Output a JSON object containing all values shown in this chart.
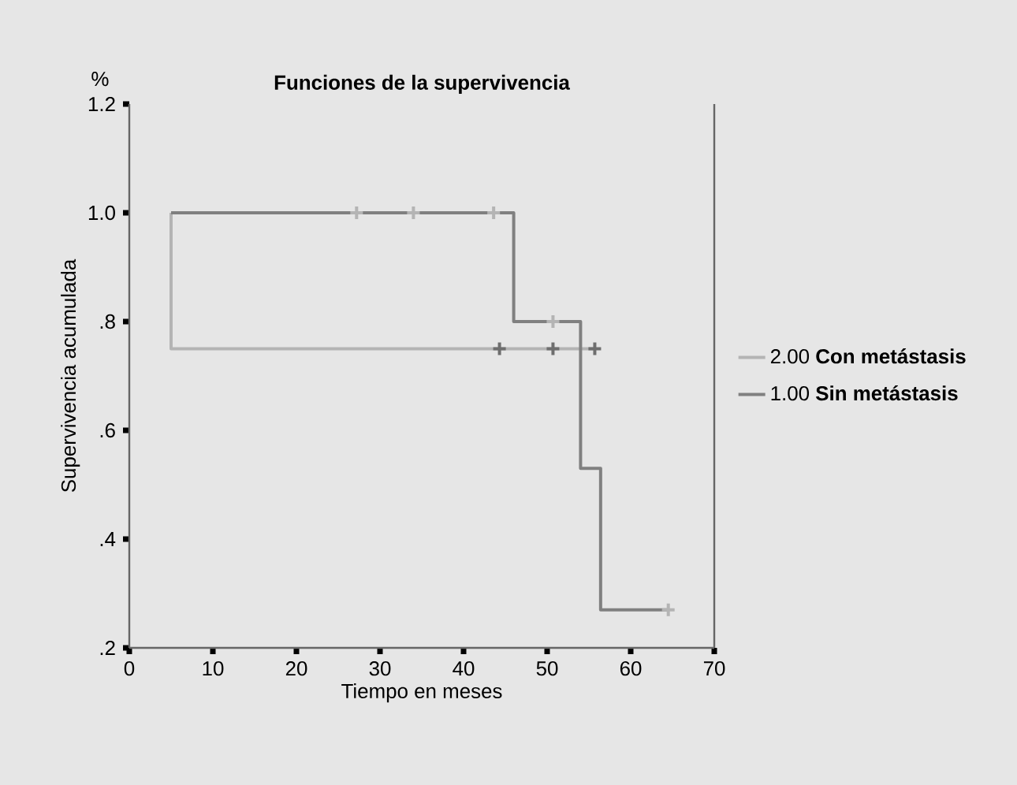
{
  "chart_data": {
    "type": "step",
    "title": "Funciones de la supervivencia",
    "xlabel": "Tiempo en meses",
    "ylabel": "Supervivencia acumulada",
    "annotations": [
      "%"
    ],
    "xlim": [
      0,
      70
    ],
    "xticks": [
      0,
      10,
      20,
      30,
      40,
      50,
      60,
      70
    ],
    "ylim": [
      0.2,
      1.2
    ],
    "yticks": [
      {
        "value": 0.2,
        "label": ".2"
      },
      {
        "value": 0.4,
        "label": ".4"
      },
      {
        "value": 0.6,
        "label": ".6"
      },
      {
        "value": 0.8,
        "label": ".8"
      },
      {
        "value": 1.0,
        "label": "1.0"
      },
      1.2
    ],
    "grid": false,
    "legend": "right",
    "series": [
      {
        "name": "2.00 **Con metástasis**",
        "color": "#b4b4b4",
        "x": [
          5,
          5,
          55.7
        ],
        "values": [
          1.0,
          0.75,
          0.75
        ]
      },
      {
        "name": "1.00 **Sin metástasis**",
        "color": "#808080",
        "x": [
          5,
          46,
          54,
          56.4,
          64.5
        ],
        "values": [
          1.0,
          0.8,
          0.53,
          0.27,
          0.27
        ]
      },
      {
        "type": "scatter",
        "marker": "cross",
        "color": "#6e6e6e",
        "x": [
          44.3,
          50.7,
          55.7
        ],
        "values": [
          0.75,
          0.75,
          0.75
        ]
      },
      {
        "type": "scatter",
        "marker": "cross",
        "color": "#b4b4b4",
        "x": [
          27.2,
          34,
          43.6,
          50.7,
          64.5
        ],
        "values": [
          1.0,
          1.0,
          1.0,
          0.8,
          0.27
        ]
      }
    ]
  }
}
